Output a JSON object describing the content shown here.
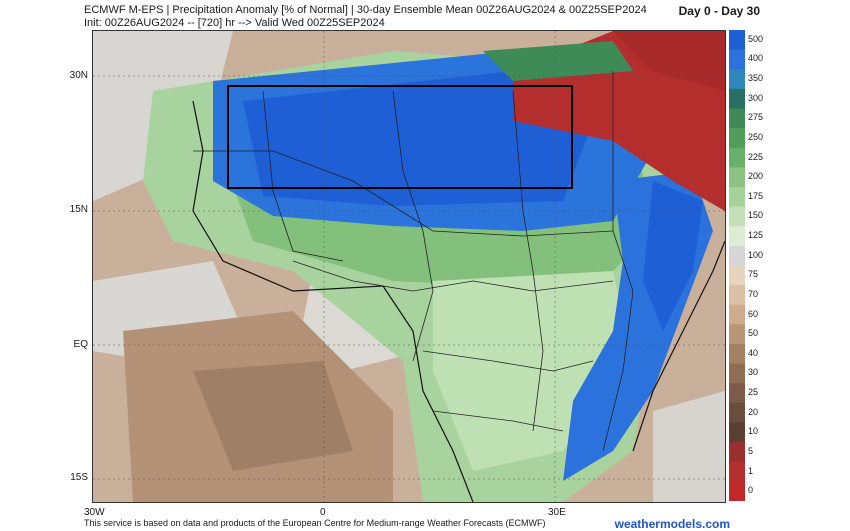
{
  "header": {
    "line1": "ECMWF M-EPS | Precipitation Anomaly [% of Normal] | 30-day Ensemble Mean 00Z26AUG2024 & 00Z25SEP2024",
    "line2": "Init: 00Z26AUG2024 -- [720] hr --> Valid Wed 00Z25SEP2024",
    "day_range": "Day 0 - Day 30"
  },
  "axes": {
    "lat_labels": [
      "30N",
      "15N",
      "EQ",
      "15S"
    ],
    "lon_labels": [
      "30W",
      "0",
      "30E"
    ]
  },
  "colorbar": {
    "labels": [
      "500",
      "400",
      "350",
      "300",
      "275",
      "250",
      "225",
      "200",
      "175",
      "150",
      "125",
      "100",
      "75",
      "70",
      "60",
      "50",
      "40",
      "30",
      "25",
      "20",
      "10",
      "5",
      "1",
      "0"
    ],
    "colors": [
      "#1f5fd6",
      "#2b72dc",
      "#2f86b8",
      "#2a6f62",
      "#3f8b58",
      "#4f9e5b",
      "#66b06a",
      "#8cc283",
      "#a7d19c",
      "#c3e0b8",
      "#dbeed3",
      "#d6d6d6",
      "#e8d3bf",
      "#dcc0a5",
      "#ccac8c",
      "#b89678",
      "#a38165",
      "#8e6d55",
      "#7c5c48",
      "#6b4d3d",
      "#5a3e31",
      "#9a2f2f",
      "#b52e2e",
      "#c0282a"
    ]
  },
  "footer": {
    "note": "This service is based on data and products of the European Centre for Medium-range Weather Forecasts (ECMWF)",
    "brand": "weathermodels.com"
  }
}
